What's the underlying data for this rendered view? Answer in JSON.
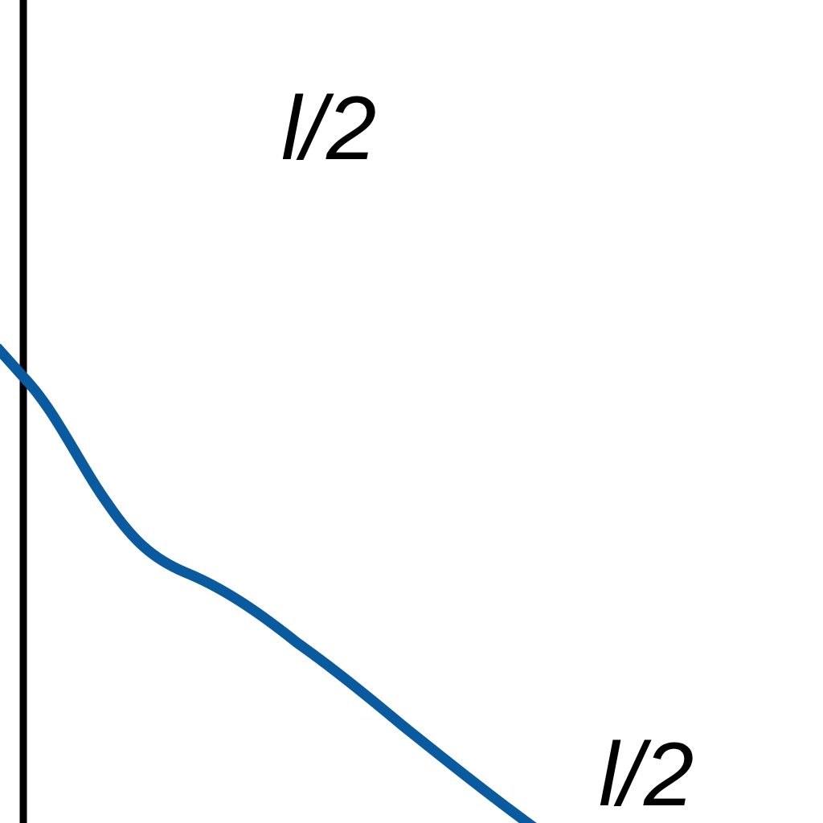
{
  "labels": {
    "top": "l/2",
    "bottom": "l/2"
  },
  "colors": {
    "line": "#000000",
    "curve": "#0a5aa0",
    "text": "#000000",
    "background": "#ffffff"
  }
}
